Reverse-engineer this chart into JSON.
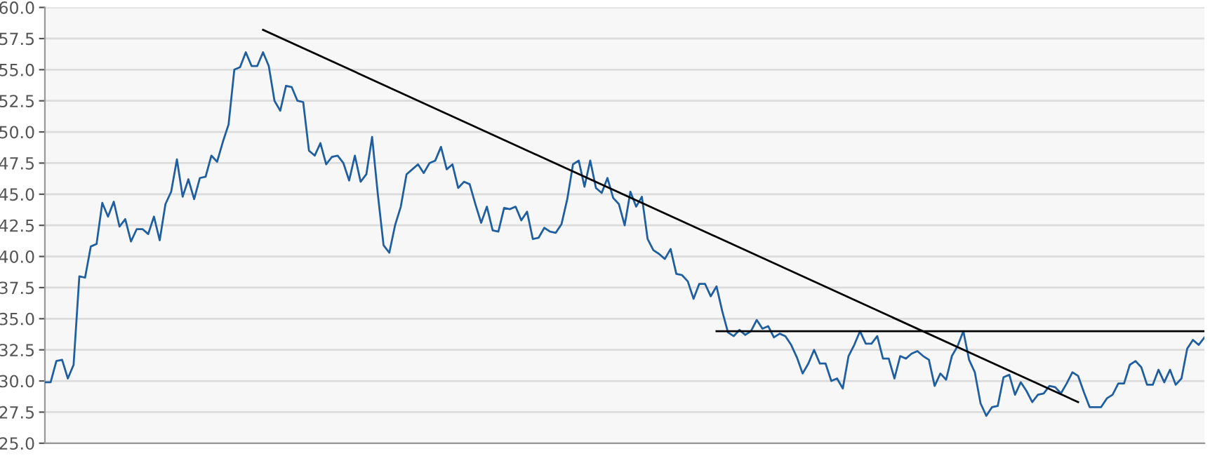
{
  "chart_data": {
    "type": "line",
    "ylim": [
      25,
      60
    ],
    "categories": [
      null,
      null,
      null,
      null,
      null,
      null,
      null,
      null,
      null,
      null,
      null,
      null,
      null,
      null,
      null,
      null,
      null,
      null,
      null,
      null,
      null,
      null,
      null,
      null,
      null,
      null,
      null,
      null,
      null,
      null,
      null,
      null,
      null,
      null,
      null,
      null,
      null,
      null,
      null,
      null,
      null,
      null,
      null,
      null,
      null,
      null,
      null,
      null,
      null,
      null,
      null,
      null,
      null,
      null,
      null,
      null,
      null,
      null,
      null,
      null,
      null,
      null,
      null,
      null,
      null,
      null,
      null,
      null,
      null,
      null,
      null,
      null,
      null,
      null,
      null,
      null,
      null,
      null,
      null,
      null,
      null,
      null,
      null,
      null,
      null,
      null,
      null,
      null,
      null,
      null,
      null,
      null,
      null,
      null,
      null,
      null,
      null,
      null,
      null,
      null,
      null,
      null,
      null,
      null,
      null,
      null,
      null,
      null,
      null,
      null,
      null,
      null,
      null,
      null,
      null,
      null,
      null,
      null,
      null,
      null,
      null,
      null,
      null,
      null,
      null,
      null,
      null,
      null,
      null,
      null,
      null,
      null,
      null,
      null,
      null,
      null,
      null,
      null,
      null,
      null,
      null,
      null,
      null,
      null,
      null,
      null,
      null,
      null,
      null,
      null,
      null,
      null,
      null,
      null,
      null,
      null,
      null,
      null,
      null,
      null,
      null,
      null,
      null,
      null,
      null,
      null,
      null,
      null,
      null,
      null,
      null,
      null,
      null,
      null,
      null,
      null,
      null,
      null,
      null,
      null,
      null,
      null,
      null,
      null,
      null,
      null,
      null,
      null,
      null,
      null,
      null,
      null,
      null,
      null,
      null,
      null,
      null,
      null,
      null,
      null,
      null,
      null,
      null
    ],
    "yticks": [
      {
        "value": 25,
        "label": "25.0"
      },
      {
        "value": 27.5,
        "label": "27.5"
      },
      {
        "value": 30,
        "label": "30.0"
      },
      {
        "value": 32.5,
        "label": "32.5"
      },
      {
        "value": 35,
        "label": "35.0"
      },
      {
        "value": 37.5,
        "label": "37.5"
      },
      {
        "value": 40,
        "label": "40.0"
      },
      {
        "value": 42.5,
        "label": "42.5"
      },
      {
        "value": 45,
        "label": "45.0"
      },
      {
        "value": 47.5,
        "label": "47.5"
      },
      {
        "value": 50,
        "label": "50.0"
      },
      {
        "value": 52.5,
        "label": "52.5"
      },
      {
        "value": 55,
        "label": "55.0"
      },
      {
        "value": 57.5,
        "label": "57.5"
      },
      {
        "value": 60,
        "label": "60.0"
      }
    ],
    "tick_labels": "y",
    "grid": "y",
    "marker": "none",
    "line_style": "solid",
    "series": [
      {
        "color": "#1f5fa0",
        "values": [
          29.9,
          29.9,
          31.6,
          31.7,
          30.2,
          31.3,
          38.4,
          38.3,
          40.8,
          41.0,
          44.3,
          43.2,
          44.4,
          42.4,
          43.0,
          41.2,
          42.2,
          42.2,
          41.8,
          43.2,
          41.3,
          44.2,
          45.2,
          47.8,
          44.8,
          46.2,
          44.6,
          46.3,
          46.4,
          48.1,
          47.6,
          49.2,
          50.6,
          55.0,
          55.2,
          56.4,
          55.3,
          55.3,
          56.4,
          55.3,
          52.5,
          51.7,
          53.7,
          53.6,
          52.5,
          52.4,
          48.5,
          48.1,
          49.1,
          47.4,
          48.0,
          48.1,
          47.5,
          46.1,
          48.1,
          46.0,
          46.6,
          49.6,
          45.0,
          40.9,
          40.3,
          42.5,
          44.0,
          46.6,
          47.0,
          47.4,
          46.7,
          47.5,
          47.7,
          48.8,
          47.0,
          47.4,
          45.5,
          46.0,
          45.8,
          44.2,
          42.7,
          44.0,
          42.1,
          42.0,
          43.9,
          43.8,
          44.0,
          42.9,
          43.6,
          41.4,
          41.5,
          42.3,
          42.0,
          41.9,
          42.6,
          44.6,
          47.4,
          47.7,
          45.6,
          47.7,
          45.5,
          45.1,
          46.3,
          44.7,
          44.2,
          42.5,
          45.2,
          44.0,
          44.8,
          41.4,
          40.5,
          40.2,
          39.8,
          40.6,
          38.6,
          38.5,
          38.0,
          36.6,
          37.8,
          37.8,
          36.8,
          37.6,
          35.6,
          33.9,
          33.6,
          34.1,
          33.7,
          34.0,
          34.9,
          34.2,
          34.4,
          33.5,
          33.8,
          33.6,
          32.9,
          31.9,
          30.6,
          31.4,
          32.5,
          31.4,
          31.4,
          30.0,
          30.2,
          29.4,
          32.0,
          32.9,
          34.0,
          33.0,
          33.0,
          33.6,
          31.8,
          31.8,
          30.2,
          32.0,
          31.8,
          32.2,
          32.4,
          32.0,
          31.7,
          29.6,
          30.6,
          30.1,
          32.0,
          32.8,
          34.0,
          31.7,
          30.7,
          28.2,
          27.2,
          27.9,
          28.0,
          30.3,
          30.5,
          28.9,
          29.9,
          29.2,
          28.3,
          28.9,
          29.0,
          29.6,
          29.5,
          29.0,
          29.8,
          30.7,
          30.4,
          29.1,
          27.9,
          27.9,
          27.9,
          28.6,
          28.9,
          29.8,
          29.8,
          31.3,
          31.6,
          31.1,
          29.7,
          29.7,
          30.9,
          29.9,
          30.9,
          29.7,
          30.2,
          32.6,
          33.3,
          32.9,
          33.5
        ]
      },
      {
        "color": "#000000",
        "values": [
          null,
          null,
          null,
          null,
          null,
          null,
          null,
          null,
          null,
          null,
          null,
          null,
          null,
          null,
          null,
          null,
          null,
          null,
          null,
          null,
          null,
          null,
          null,
          null,
          null,
          null,
          null,
          null,
          null,
          null,
          null,
          null,
          null,
          null,
          null,
          null,
          null,
          null,
          58.2,
          null,
          null,
          null,
          null,
          null,
          null,
          null,
          null,
          null,
          null,
          null,
          null,
          null,
          null,
          null,
          null,
          null,
          null,
          null,
          null,
          null,
          null,
          null,
          null,
          null,
          null,
          null,
          null,
          null,
          null,
          null,
          null,
          null,
          null,
          null,
          null,
          null,
          null,
          null,
          null,
          null,
          null,
          null,
          null,
          null,
          null,
          null,
          null,
          null,
          null,
          null,
          null,
          null,
          null,
          null,
          null,
          null,
          null,
          null,
          null,
          null,
          null,
          null,
          null,
          null,
          null,
          null,
          null,
          null,
          null,
          null,
          null,
          null,
          null,
          null,
          null,
          null,
          null,
          null,
          null,
          null,
          null,
          null,
          null,
          null,
          null,
          null,
          null,
          null,
          null,
          null,
          null,
          null,
          null,
          null,
          null,
          null,
          null,
          null,
          null,
          null,
          null,
          null,
          null,
          null,
          null,
          null,
          null,
          null,
          null,
          null,
          null,
          null,
          null,
          null,
          null,
          null,
          null,
          null,
          null,
          null,
          null,
          null,
          null,
          null,
          null,
          null,
          null,
          null,
          null,
          null,
          null,
          null,
          null,
          null,
          null,
          null,
          null,
          null,
          null,
          null,
          28.3,
          null,
          null,
          null,
          null,
          null,
          null,
          null,
          null,
          null,
          null,
          null,
          null,
          null,
          null,
          null,
          null,
          null,
          null,
          null,
          null,
          null,
          null
        ]
      },
      {
        "color": "#000000",
        "values": [
          null,
          null,
          null,
          null,
          null,
          null,
          null,
          null,
          null,
          null,
          null,
          null,
          null,
          null,
          null,
          null,
          null,
          null,
          null,
          null,
          null,
          null,
          null,
          null,
          null,
          null,
          null,
          null,
          null,
          null,
          null,
          null,
          null,
          null,
          null,
          null,
          null,
          null,
          null,
          null,
          null,
          null,
          null,
          null,
          null,
          null,
          null,
          null,
          null,
          null,
          null,
          null,
          null,
          null,
          null,
          null,
          null,
          null,
          null,
          null,
          null,
          null,
          null,
          null,
          null,
          null,
          null,
          null,
          null,
          null,
          null,
          null,
          null,
          null,
          null,
          null,
          null,
          null,
          null,
          null,
          null,
          null,
          null,
          null,
          null,
          null,
          null,
          null,
          null,
          null,
          null,
          null,
          null,
          null,
          null,
          null,
          null,
          null,
          null,
          null,
          null,
          null,
          null,
          null,
          null,
          null,
          null,
          null,
          null,
          null,
          null,
          null,
          null,
          null,
          null,
          null,
          null,
          34.0,
          null,
          null,
          null,
          null,
          null,
          null,
          null,
          null,
          null,
          null,
          null,
          null,
          null,
          null,
          null,
          null,
          null,
          null,
          null,
          null,
          null,
          null,
          null,
          null,
          null,
          null,
          null,
          null,
          null,
          null,
          null,
          null,
          null,
          null,
          null,
          null,
          null,
          null,
          null,
          null,
          null,
          null,
          null,
          null,
          null,
          null,
          null,
          null,
          null,
          null,
          null,
          null,
          null,
          null,
          null,
          null,
          null,
          null,
          null,
          null,
          null,
          null,
          null,
          null,
          null,
          null,
          null,
          null,
          null,
          null,
          null,
          null,
          null,
          null,
          null,
          null,
          null,
          null,
          null,
          null,
          null,
          null,
          null,
          null,
          34.0
        ]
      }
    ]
  }
}
